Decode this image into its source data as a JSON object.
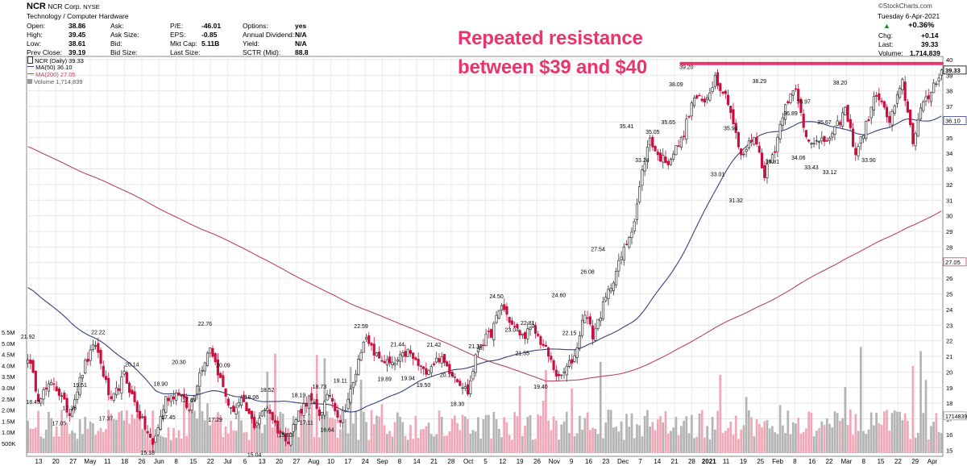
{
  "header": {
    "ticker": "NCR",
    "company": "NCR Corp.",
    "exchange": "NYSE",
    "sector": "Technology / Computer Hardware",
    "watermark": "©StockCharts.com",
    "date": "Tuesday  6-Apr-2021",
    "stats": [
      {
        "label": "Open:",
        "value": "38.86"
      },
      {
        "label": "High:",
        "value": "39.45"
      },
      {
        "label": "Low:",
        "value": "38.61"
      },
      {
        "label": "Prev Close:",
        "value": "39.19"
      },
      {
        "label": "Ask:",
        "value": ""
      },
      {
        "label": "Ask Size:",
        "value": ""
      },
      {
        "label": "Bid:",
        "value": ""
      },
      {
        "label": "Bid Size:",
        "value": ""
      },
      {
        "label": "P/E:",
        "value": "-46.01"
      },
      {
        "label": "EPS:",
        "value": "-0.85"
      },
      {
        "label": "Mkt Cap:",
        "value": "5.11B"
      },
      {
        "label": "Last Size:",
        "value": ""
      },
      {
        "label": "Options:",
        "value": "yes"
      },
      {
        "label": "Annual Dividend:",
        "value": "N/A"
      },
      {
        "label": "Yield:",
        "value": "N/A"
      },
      {
        "label": "SCTR (Mid):",
        "value": "88.8"
      }
    ],
    "change_pct": "+0.36%",
    "chg_label": "Chg:",
    "chg_value": "+0.14",
    "last_label": "Last:",
    "last_value": "39.33",
    "volume_label": "Volume:",
    "volume_value": "1,714,839"
  },
  "legend": {
    "price": "NCR (Daily) 39.33",
    "ma50": "MA(50) 36.10",
    "ma200": "MA(200) 27.05",
    "volume": "Volume 1,714,839"
  },
  "annotation": {
    "line1": "Repeated resistance",
    "line2": "between $39 and $40"
  },
  "colors": {
    "up": "#333333",
    "down": "#c8103e",
    "ma50": "#3a3f7a",
    "ma200": "#b5485f",
    "resistance": "#e8356b",
    "volume_up": "#b4b4b4",
    "volume_down": "#f0a8b8"
  },
  "chart_data": {
    "type": "candlestick",
    "title": "NCR (Daily) 39.33",
    "ylim": [
      14.6,
      40.2
    ],
    "y_ticks": [
      15,
      16,
      17,
      18,
      19,
      20,
      21,
      22,
      23,
      24,
      25,
      26,
      27,
      28,
      29,
      30,
      31,
      32,
      33,
      34,
      35,
      36,
      37,
      38,
      39,
      40
    ],
    "x_ticks": [
      "13",
      "20",
      "27",
      "May",
      "11",
      "18",
      "26",
      "Jun",
      "8",
      "15",
      "22",
      "Jul",
      "6",
      "13",
      "20",
      "27",
      "Aug",
      "10",
      "17",
      "24",
      "Sep",
      "8",
      "14",
      "21",
      "28",
      "Oct",
      "5",
      "12",
      "19",
      "26",
      "Nov",
      "9",
      "16",
      "23",
      "Dec",
      "7",
      "14",
      "21",
      "28",
      "2021",
      "11",
      "19",
      "25",
      "Feb",
      "8",
      "16",
      "22",
      "Mar",
      "8",
      "15",
      "22",
      "29",
      "Apr"
    ],
    "volume_ticks": [
      "500K",
      "1.0M",
      "1.5M",
      "2.0M",
      "2.5M",
      "3.0M",
      "3.5M",
      "4.0M",
      "4.5M",
      "5.0M",
      "5.5M"
    ],
    "right_price_labels": [
      "39.33",
      "36.10",
      "27.05"
    ],
    "right_volume_label": "1714839",
    "price_waypoints": [
      {
        "t": 0,
        "v": 21.0
      },
      {
        "t": 4,
        "v": 18.4
      },
      {
        "t": 10,
        "v": 19.3
      },
      {
        "t": 16,
        "v": 17.3
      },
      {
        "t": 22,
        "v": 20.5
      },
      {
        "t": 26,
        "v": 21.8
      },
      {
        "t": 32,
        "v": 18.0
      },
      {
        "t": 37,
        "v": 19.8
      },
      {
        "t": 42,
        "v": 17.6
      },
      {
        "t": 48,
        "v": 15.3
      },
      {
        "t": 53,
        "v": 18.3
      },
      {
        "t": 58,
        "v": 18.7
      },
      {
        "t": 62,
        "v": 17.5
      },
      {
        "t": 66,
        "v": 19.9
      },
      {
        "t": 70,
        "v": 21.7
      },
      {
        "t": 74,
        "v": 19.5
      },
      {
        "t": 78,
        "v": 17.5
      },
      {
        "t": 82,
        "v": 18.1
      },
      {
        "t": 87,
        "v": 16.6
      },
      {
        "t": 92,
        "v": 17.8
      },
      {
        "t": 96,
        "v": 16.3
      },
      {
        "t": 100,
        "v": 15.7
      },
      {
        "t": 104,
        "v": 17.4
      },
      {
        "t": 108,
        "v": 18.3
      },
      {
        "t": 112,
        "v": 17.3
      },
      {
        "t": 116,
        "v": 18.6
      },
      {
        "t": 120,
        "v": 16.9
      },
      {
        "t": 125,
        "v": 19.2
      },
      {
        "t": 129,
        "v": 22.2
      },
      {
        "t": 134,
        "v": 21.0
      },
      {
        "t": 140,
        "v": 20.4
      },
      {
        "t": 146,
        "v": 21.3
      },
      {
        "t": 152,
        "v": 20.0
      },
      {
        "t": 158,
        "v": 20.9
      },
      {
        "t": 164,
        "v": 19.8
      },
      {
        "t": 169,
        "v": 18.7
      },
      {
        "t": 173,
        "v": 21.6
      },
      {
        "t": 178,
        "v": 22.5
      },
      {
        "t": 182,
        "v": 24.3
      },
      {
        "t": 186,
        "v": 23.0
      },
      {
        "t": 190,
        "v": 22.3
      },
      {
        "t": 194,
        "v": 22.8
      },
      {
        "t": 199,
        "v": 21.4
      },
      {
        "t": 204,
        "v": 19.5
      },
      {
        "t": 210,
        "v": 21.0
      },
      {
        "t": 214,
        "v": 23.9
      },
      {
        "t": 217,
        "v": 22.3
      },
      {
        "t": 221,
        "v": 24.2
      },
      {
        "t": 225,
        "v": 26.0
      },
      {
        "t": 229,
        "v": 27.8
      },
      {
        "t": 233,
        "v": 29.7
      },
      {
        "t": 236,
        "v": 32.8
      },
      {
        "t": 239,
        "v": 35.0
      },
      {
        "t": 242,
        "v": 33.8
      },
      {
        "t": 246,
        "v": 33.5
      },
      {
        "t": 251,
        "v": 34.8
      },
      {
        "t": 256,
        "v": 37.6
      },
      {
        "t": 260,
        "v": 37.2
      },
      {
        "t": 264,
        "v": 38.9
      },
      {
        "t": 269,
        "v": 37.4
      },
      {
        "t": 274,
        "v": 33.7
      },
      {
        "t": 279,
        "v": 35.2
      },
      {
        "t": 283,
        "v": 32.7
      },
      {
        "t": 287,
        "v": 34.3
      },
      {
        "t": 291,
        "v": 37.3
      },
      {
        "t": 295,
        "v": 38.0
      },
      {
        "t": 299,
        "v": 35.1
      },
      {
        "t": 304,
        "v": 34.6
      },
      {
        "t": 309,
        "v": 35.1
      },
      {
        "t": 314,
        "v": 36.8
      },
      {
        "t": 318,
        "v": 34.0
      },
      {
        "t": 322,
        "v": 35.8
      },
      {
        "t": 326,
        "v": 37.9
      },
      {
        "t": 331,
        "v": 36.0
      },
      {
        "t": 336,
        "v": 38.5
      },
      {
        "t": 340,
        "v": 34.8
      },
      {
        "t": 343,
        "v": 36.8
      },
      {
        "t": 346,
        "v": 37.6
      },
      {
        "t": 348,
        "v": 38.4
      },
      {
        "t": 351,
        "v": 39.33
      }
    ],
    "price_labels": [
      {
        "t": 0,
        "v": 21.92
      },
      {
        "t": 2,
        "v": 18.43
      },
      {
        "t": 12,
        "v": 17.05
      },
      {
        "t": 16,
        "v": 17.36
      },
      {
        "t": 20,
        "v": 19.51
      },
      {
        "t": 27,
        "v": 22.22
      },
      {
        "t": 30,
        "v": 17.37
      },
      {
        "t": 40,
        "v": 20.14
      },
      {
        "t": 46,
        "v": 15.18
      },
      {
        "t": 51,
        "v": 18.9
      },
      {
        "t": 54,
        "v": 17.45
      },
      {
        "t": 58,
        "v": 20.3
      },
      {
        "t": 62,
        "v": 17.89
      },
      {
        "t": 68,
        "v": 22.76
      },
      {
        "t": 72,
        "v": 17.29
      },
      {
        "t": 75,
        "v": 20.09
      },
      {
        "t": 86,
        "v": 18.06
      },
      {
        "t": 87,
        "v": 15.04
      },
      {
        "t": 92,
        "v": 18.52
      },
      {
        "t": 99,
        "v": 15.63
      },
      {
        "t": 104,
        "v": 18.19
      },
      {
        "t": 107,
        "v": 17.11
      },
      {
        "t": 112,
        "v": 18.73
      },
      {
        "t": 115,
        "v": 16.64
      },
      {
        "t": 120,
        "v": 19.11
      },
      {
        "t": 128,
        "v": 22.59
      },
      {
        "t": 137,
        "v": 19.89
      },
      {
        "t": 142,
        "v": 21.44
      },
      {
        "t": 146,
        "v": 19.94
      },
      {
        "t": 152,
        "v": 19.5
      },
      {
        "t": 156,
        "v": 21.42
      },
      {
        "t": 161,
        "v": 20.14
      },
      {
        "t": 165,
        "v": 18.3
      },
      {
        "t": 172,
        "v": 21.32
      },
      {
        "t": 180,
        "v": 24.5
      },
      {
        "t": 186,
        "v": 23.04
      },
      {
        "t": 190,
        "v": 21.55
      },
      {
        "t": 192,
        "v": 22.81
      },
      {
        "t": 197,
        "v": 19.4
      },
      {
        "t": 204,
        "v": 24.6
      },
      {
        "t": 208,
        "v": 22.15
      },
      {
        "t": 215,
        "v": 26.08
      },
      {
        "t": 219,
        "v": 27.54
      },
      {
        "t": 230,
        "v": 35.41
      },
      {
        "t": 236,
        "v": 33.24
      },
      {
        "t": 240,
        "v": 35.05
      },
      {
        "t": 246,
        "v": 35.65
      },
      {
        "t": 249,
        "v": 38.09
      },
      {
        "t": 253,
        "v": 39.2
      },
      {
        "t": 265,
        "v": 33.01
      },
      {
        "t": 270,
        "v": 35.94
      },
      {
        "t": 272,
        "v": 31.32
      },
      {
        "t": 281,
        "v": 38.29
      },
      {
        "t": 286,
        "v": 33.81
      },
      {
        "t": 293,
        "v": 36.89
      },
      {
        "t": 296,
        "v": 34.06
      },
      {
        "t": 298,
        "v": 36.97
      },
      {
        "t": 301,
        "v": 33.43
      },
      {
        "t": 306,
        "v": 35.67
      },
      {
        "t": 308,
        "v": 33.12
      },
      {
        "t": 312,
        "v": 38.2
      },
      {
        "t": 323,
        "v": 33.9
      }
    ],
    "resistance_level": 39.75
  }
}
